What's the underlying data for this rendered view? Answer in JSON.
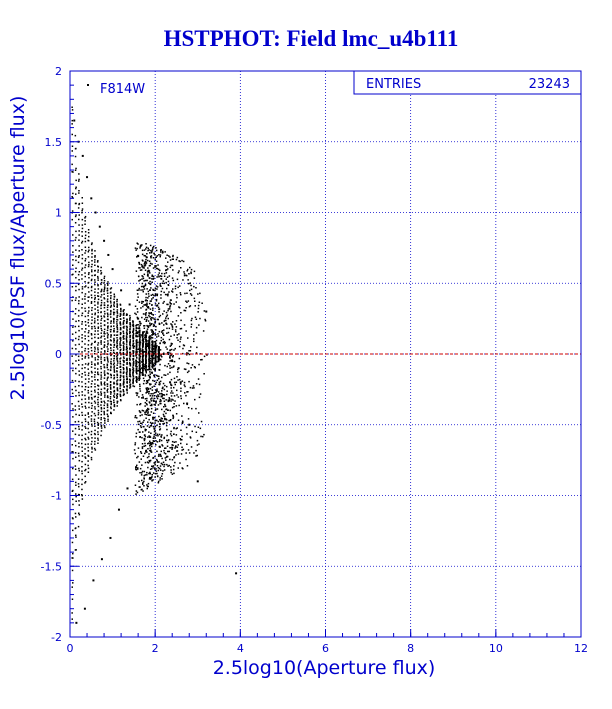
{
  "colors": {
    "axis": "#0000cc",
    "text_blue": "#0000cc",
    "grid": "#0000cc",
    "ref_line": "#cc0000",
    "points": "#000000",
    "background": "#ffffff"
  },
  "chart_data": {
    "type": "scatter",
    "title": "HSTPHOT: Field lmc_u4b111",
    "xlabel": "2.5log10(Aperture flux)",
    "ylabel": "2.5log10(PSF flux/Aperture flux)",
    "xlim": [
      0,
      12
    ],
    "ylim": [
      -2,
      2
    ],
    "x_ticks": [
      "0",
      "2",
      "4",
      "6",
      "8",
      "10",
      "12"
    ],
    "y_ticks": [
      "-2",
      "-1.5",
      "-1",
      "-0.5",
      "0",
      "0.5",
      "1",
      "1.5",
      "2"
    ],
    "grid": true,
    "reference_line": {
      "y": 0,
      "style": "dashed"
    },
    "annotation": "F814W",
    "stats": {
      "label": "ENTRIES",
      "value": "23243"
    },
    "points_rendered_note": "",
    "series": [
      {
        "name": "",
        "x": [
          0.1,
          0.2,
          0.3,
          0.4,
          0.5,
          0.6,
          0.7,
          0.8,
          0.9,
          1.0,
          1.2,
          1.4,
          1.6,
          1.8,
          2.0,
          2.2,
          2.4,
          2.6,
          2.8,
          3.0,
          3.2,
          3.9,
          0.15,
          0.35,
          0.55,
          0.75,
          0.95,
          1.15,
          1.35,
          1.55,
          1.75,
          1.95,
          2.15,
          2.35,
          2.55,
          2.75
        ],
        "y": [
          1.65,
          1.5,
          1.4,
          1.25,
          1.1,
          1.0,
          0.9,
          0.8,
          0.7,
          0.6,
          0.45,
          0.35,
          0.25,
          0.15,
          0.05,
          0.0,
          -0.05,
          -0.2,
          -0.5,
          -0.9,
          0.3,
          -1.55,
          -1.9,
          -1.8,
          -1.6,
          -1.45,
          -1.3,
          -1.1,
          -0.95,
          -0.8,
          -0.6,
          -0.45,
          -0.3,
          -0.2,
          -0.1,
          -0.35
        ]
      }
    ]
  }
}
